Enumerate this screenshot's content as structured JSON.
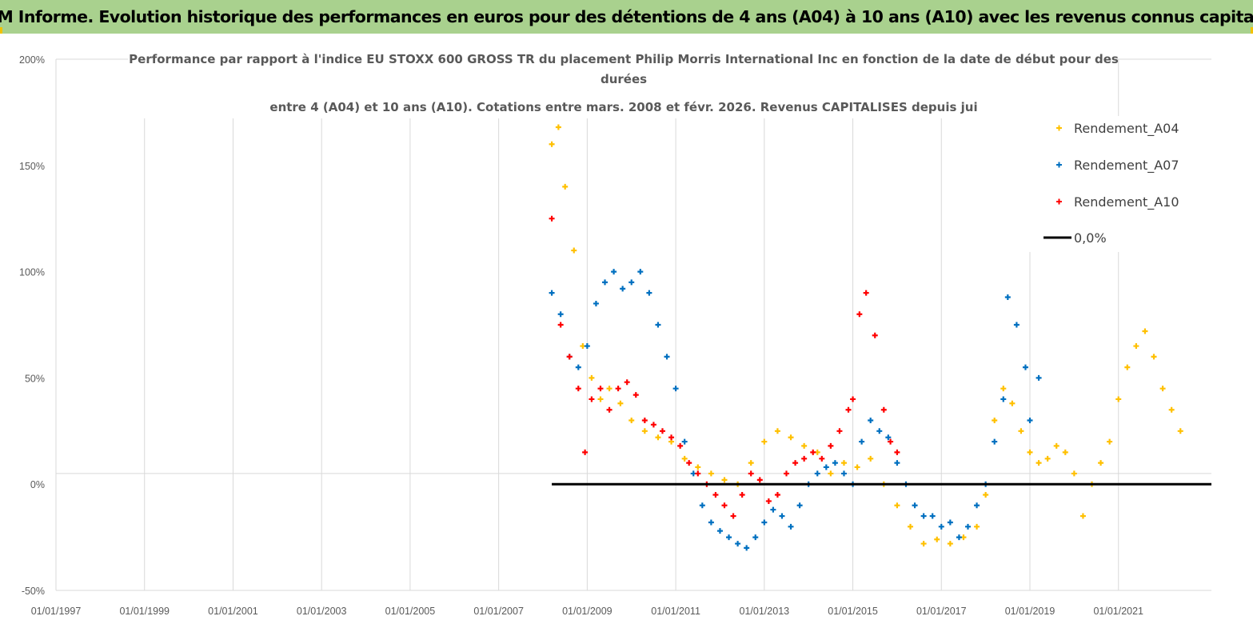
{
  "header": {
    "title": "ADAM Informe. Evolution historique des performances en euros pour des détentions de 4 ans (A04) à 10 ans (A10) avec les revenus connus capitalisés"
  },
  "colors": {
    "header_bg": "#a9d18e",
    "a04": "#ffc000",
    "a07": "#0070c0",
    "a10": "#ff0000",
    "zero": "#000000",
    "grid": "#d9d9d9"
  },
  "chart_data": {
    "type": "scatter",
    "title_lines": [
      "Performance par rapport à l'indice EU STOXX 600 GROSS TR  du placement Philip Morris International Inc en fonction de la date de début pour des",
      "durées",
      "entre 4 (A04) et 10 ans (A10). Cotations entre mars. 2008 et févr. 2026. Revenus CAPITALISES depuis jui"
    ],
    "y_ticks": [
      "200%",
      "150%",
      "100%",
      "50%",
      "0%",
      "-50%"
    ],
    "y_tick_values": [
      200,
      150,
      100,
      50,
      0,
      -50
    ],
    "x_ticks": [
      "01/01/1997",
      "01/01/1999",
      "01/01/2001",
      "01/01/2003",
      "01/01/2005",
      "01/01/2007",
      "01/01/2009",
      "01/01/2011",
      "01/01/2013",
      "01/01/2015",
      "01/01/2017",
      "01/01/2019",
      "01/01/2021"
    ],
    "x_tick_values": [
      1997,
      1999,
      2001,
      2003,
      2005,
      2007,
      2009,
      2011,
      2013,
      2015,
      2017,
      2019,
      2021
    ],
    "xlim": [
      1997,
      2023.1
    ],
    "ylim": [
      -50,
      200
    ],
    "legend": [
      "Rendement_A04",
      "Rendement_A07",
      "Rendement_A10",
      "0,0%"
    ],
    "series": [
      {
        "name": "Rendement_A04",
        "x": [
          2008.2,
          2008.35,
          2008.5,
          2008.7,
          2008.9,
          2009.1,
          2009.3,
          2009.5,
          2009.75,
          2010.0,
          2010.3,
          2010.6,
          2010.9,
          2011.2,
          2011.5,
          2011.8,
          2012.1,
          2012.4,
          2012.7,
          2013.0,
          2013.3,
          2013.6,
          2013.9,
          2014.2,
          2014.5,
          2014.8,
          2015.1,
          2015.4,
          2015.7,
          2016.0,
          2016.3,
          2016.6,
          2016.9,
          2017.2,
          2017.5,
          2017.8,
          2018.0,
          2018.2,
          2018.4,
          2018.6,
          2018.8,
          2019.0,
          2019.2,
          2019.4,
          2019.6,
          2019.8,
          2020.0,
          2020.2,
          2020.4,
          2020.6,
          2020.8,
          2021.0,
          2021.2,
          2021.4,
          2021.6,
          2021.8,
          2022.0,
          2022.2,
          2022.4
        ],
        "y": [
          160,
          168,
          140,
          110,
          65,
          50,
          40,
          45,
          38,
          30,
          25,
          22,
          20,
          12,
          8,
          5,
          2,
          0,
          10,
          20,
          25,
          22,
          18,
          15,
          5,
          10,
          8,
          12,
          0,
          -10,
          -20,
          -28,
          -26,
          -28,
          -25,
          -20,
          -5,
          30,
          45,
          38,
          25,
          15,
          10,
          12,
          18,
          15,
          5,
          -15,
          0,
          10,
          20,
          40,
          55,
          65,
          72,
          60,
          45,
          35,
          25
        ]
      },
      {
        "name": "Rendement_A07",
        "x": [
          2008.2,
          2008.4,
          2008.6,
          2008.8,
          2009.0,
          2009.2,
          2009.4,
          2009.6,
          2009.8,
          2010.0,
          2010.2,
          2010.4,
          2010.6,
          2010.8,
          2011.0,
          2011.2,
          2011.4,
          2011.6,
          2011.8,
          2012.0,
          2012.2,
          2012.4,
          2012.6,
          2012.8,
          2013.0,
          2013.2,
          2013.4,
          2013.6,
          2013.8,
          2014.0,
          2014.2,
          2014.4,
          2014.6,
          2014.8,
          2015.0,
          2015.2,
          2015.4,
          2015.6,
          2015.8,
          2016.0,
          2016.2,
          2016.4,
          2016.6,
          2016.8,
          2017.0,
          2017.2,
          2017.4,
          2017.6,
          2017.8,
          2018.0,
          2018.2,
          2018.4,
          2018.5,
          2018.7,
          2018.9,
          2019.0,
          2019.2
        ],
        "y": [
          90,
          80,
          60,
          55,
          65,
          85,
          95,
          100,
          92,
          95,
          100,
          90,
          75,
          60,
          45,
          20,
          5,
          -10,
          -18,
          -22,
          -25,
          -28,
          -30,
          -25,
          -18,
          -12,
          -15,
          -20,
          -10,
          0,
          5,
          8,
          10,
          5,
          0,
          20,
          30,
          25,
          22,
          10,
          0,
          -10,
          -15,
          -15,
          -20,
          -18,
          -25,
          -20,
          -10,
          0,
          20,
          40,
          88,
          75,
          55,
          30,
          50
        ]
      },
      {
        "name": "Rendement_A10",
        "x": [
          2008.2,
          2008.4,
          2008.6,
          2008.8,
          2008.95,
          2009.1,
          2009.3,
          2009.5,
          2009.7,
          2009.9,
          2010.1,
          2010.3,
          2010.5,
          2010.7,
          2010.9,
          2011.1,
          2011.3,
          2011.5,
          2011.7,
          2011.9,
          2012.1,
          2012.3,
          2012.5,
          2012.7,
          2012.9,
          2013.1,
          2013.3,
          2013.5,
          2013.7,
          2013.9,
          2014.1,
          2014.3,
          2014.5,
          2014.7,
          2014.9,
          2015.0,
          2015.15,
          2015.3,
          2015.5,
          2015.7,
          2015.85,
          2016.0
        ],
        "y": [
          125,
          75,
          60,
          45,
          15,
          40,
          45,
          35,
          45,
          48,
          42,
          30,
          28,
          25,
          22,
          18,
          10,
          5,
          0,
          -5,
          -10,
          -15,
          -5,
          5,
          2,
          -8,
          -5,
          5,
          10,
          12,
          15,
          12,
          18,
          25,
          35,
          40,
          80,
          90,
          70,
          35,
          20,
          15
        ]
      }
    ],
    "zero_line": {
      "name": "0,0%",
      "x_range": [
        2008.2,
        2023.1
      ],
      "y": 0
    }
  }
}
